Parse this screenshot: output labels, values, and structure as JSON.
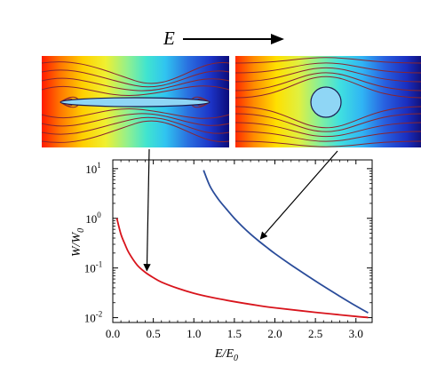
{
  "field_label": {
    "main": "E",
    "sub": ""
  },
  "insets": [
    {
      "shape": "ellipse"
    },
    {
      "shape": "circle"
    }
  ],
  "colors": {
    "red_curve": "#d8141c",
    "blue_curve": "#2a4c9a",
    "inclusion_fill": "#8fd6f5",
    "field_line": "#8a2530"
  },
  "chart_data": {
    "type": "line",
    "title": "",
    "xlabel": "E/E",
    "xlabel_sub": "0",
    "ylabel": "W/W",
    "ylabel_sub": "0",
    "yscale": "log",
    "xlim": [
      0,
      3.2
    ],
    "ylim": [
      0.008,
      15
    ],
    "grid": false,
    "legend": "none",
    "x_ticks": [
      {
        "value": 0.0,
        "label": "0.0"
      },
      {
        "value": 0.5,
        "label": "0.5"
      },
      {
        "value": 1.0,
        "label": "1.0"
      },
      {
        "value": 1.5,
        "label": "1.5"
      },
      {
        "value": 2.0,
        "label": "2.0"
      },
      {
        "value": 2.5,
        "label": "2.5"
      },
      {
        "value": 3.0,
        "label": "3.0"
      }
    ],
    "y_ticks": [
      {
        "value": 0.01,
        "base": "10",
        "exp": "-2"
      },
      {
        "value": 0.1,
        "base": "10",
        "exp": "-1"
      },
      {
        "value": 1,
        "base": "10",
        "exp": "0"
      },
      {
        "value": 10,
        "base": "10",
        "exp": "1"
      }
    ],
    "series": [
      {
        "color": "#d8141c",
        "x": [
          0.05,
          0.1,
          0.15,
          0.2,
          0.3,
          0.4,
          0.5,
          0.6,
          0.8,
          1.0,
          1.2,
          1.5,
          1.8,
          2.0,
          2.5,
          3.0,
          3.15
        ],
        "y": [
          1.0,
          0.48,
          0.3,
          0.2,
          0.115,
          0.082,
          0.064,
          0.052,
          0.039,
          0.031,
          0.026,
          0.021,
          0.0175,
          0.0158,
          0.0128,
          0.0106,
          0.0101
        ]
      },
      {
        "color": "#2a4c9a",
        "x": [
          1.12,
          1.2,
          1.3,
          1.4,
          1.5,
          1.6,
          1.7,
          1.8,
          1.9,
          2.0,
          2.2,
          2.4,
          2.6,
          2.8,
          3.0,
          3.15
        ],
        "y": [
          9.3,
          4.4,
          2.45,
          1.55,
          1.0,
          0.68,
          0.48,
          0.35,
          0.26,
          0.195,
          0.115,
          0.07,
          0.043,
          0.027,
          0.0172,
          0.0125
        ]
      }
    ],
    "annotations": [
      {
        "target_series": 0,
        "target_x": 0.42
      },
      {
        "target_series": 1,
        "target_x": 1.8
      }
    ]
  }
}
